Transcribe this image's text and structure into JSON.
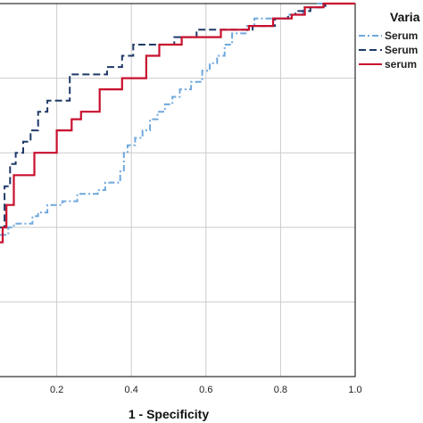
{
  "chart_data": {
    "type": "line",
    "title": "",
    "xlabel": "1 - Specificity",
    "ylabel": "",
    "xlim": [
      0,
      1.0
    ],
    "ylim": [
      0,
      1.0
    ],
    "x_ticks": [
      "0.2",
      "0.4",
      "0.6",
      "0.8",
      "1.0"
    ],
    "x_tick_values": [
      0.2,
      0.4,
      0.6,
      0.8,
      1.0
    ],
    "grid": true,
    "legend_title": "Varia",
    "legend_position": "top-right",
    "series": [
      {
        "name": "Serum",
        "color": "#6fa8dc",
        "dash": "dash-dot",
        "points": [
          [
            0,
            0.32
          ],
          [
            0.005,
            0.32
          ],
          [
            0.005,
            0.33
          ],
          [
            0.02,
            0.33
          ],
          [
            0.02,
            0.35
          ],
          [
            0.035,
            0.35
          ],
          [
            0.035,
            0.38
          ],
          [
            0.07,
            0.38
          ],
          [
            0.07,
            0.4
          ],
          [
            0.085,
            0.4
          ],
          [
            0.085,
            0.41
          ],
          [
            0.135,
            0.41
          ],
          [
            0.135,
            0.43
          ],
          [
            0.15,
            0.43
          ],
          [
            0.15,
            0.44
          ],
          [
            0.175,
            0.44
          ],
          [
            0.175,
            0.46
          ],
          [
            0.215,
            0.46
          ],
          [
            0.215,
            0.47
          ],
          [
            0.255,
            0.47
          ],
          [
            0.255,
            0.49
          ],
          [
            0.31,
            0.49
          ],
          [
            0.31,
            0.5
          ],
          [
            0.33,
            0.5
          ],
          [
            0.33,
            0.52
          ],
          [
            0.37,
            0.52
          ],
          [
            0.37,
            0.55
          ],
          [
            0.38,
            0.55
          ],
          [
            0.38,
            0.6
          ],
          [
            0.39,
            0.6
          ],
          [
            0.39,
            0.62
          ],
          [
            0.41,
            0.62
          ],
          [
            0.41,
            0.64
          ],
          [
            0.43,
            0.64
          ],
          [
            0.43,
            0.66
          ],
          [
            0.45,
            0.66
          ],
          [
            0.45,
            0.69
          ],
          [
            0.47,
            0.69
          ],
          [
            0.47,
            0.71
          ],
          [
            0.49,
            0.71
          ],
          [
            0.49,
            0.73
          ],
          [
            0.51,
            0.73
          ],
          [
            0.51,
            0.75
          ],
          [
            0.53,
            0.75
          ],
          [
            0.53,
            0.77
          ],
          [
            0.56,
            0.77
          ],
          [
            0.56,
            0.79
          ],
          [
            0.59,
            0.79
          ],
          [
            0.59,
            0.82
          ],
          [
            0.61,
            0.82
          ],
          [
            0.61,
            0.84
          ],
          [
            0.63,
            0.84
          ],
          [
            0.63,
            0.86
          ],
          [
            0.65,
            0.86
          ],
          [
            0.65,
            0.89
          ],
          [
            0.67,
            0.89
          ],
          [
            0.67,
            0.92
          ],
          [
            0.71,
            0.92
          ],
          [
            0.71,
            0.94
          ],
          [
            0.73,
            0.94
          ],
          [
            0.73,
            0.96
          ],
          [
            0.82,
            0.96
          ],
          [
            0.82,
            0.97
          ],
          [
            0.86,
            0.97
          ],
          [
            0.86,
            0.99
          ],
          [
            0.9,
            0.99
          ],
          [
            0.9,
            1.0
          ],
          [
            1.0,
            1.0
          ]
        ]
      },
      {
        "name": "Serum",
        "color": "#1f3a68",
        "dash": "dash",
        "points": [
          [
            0,
            0.16
          ],
          [
            0.01,
            0.16
          ],
          [
            0.01,
            0.27
          ],
          [
            0.025,
            0.27
          ],
          [
            0.025,
            0.34
          ],
          [
            0.04,
            0.34
          ],
          [
            0.04,
            0.4
          ],
          [
            0.06,
            0.4
          ],
          [
            0.06,
            0.51
          ],
          [
            0.075,
            0.51
          ],
          [
            0.075,
            0.57
          ],
          [
            0.09,
            0.57
          ],
          [
            0.09,
            0.6
          ],
          [
            0.11,
            0.6
          ],
          [
            0.11,
            0.63
          ],
          [
            0.13,
            0.63
          ],
          [
            0.13,
            0.66
          ],
          [
            0.15,
            0.66
          ],
          [
            0.15,
            0.71
          ],
          [
            0.175,
            0.71
          ],
          [
            0.175,
            0.74
          ],
          [
            0.235,
            0.74
          ],
          [
            0.235,
            0.81
          ],
          [
            0.335,
            0.81
          ],
          [
            0.335,
            0.83
          ],
          [
            0.375,
            0.83
          ],
          [
            0.375,
            0.86
          ],
          [
            0.405,
            0.86
          ],
          [
            0.405,
            0.89
          ],
          [
            0.515,
            0.89
          ],
          [
            0.515,
            0.91
          ],
          [
            0.575,
            0.91
          ],
          [
            0.575,
            0.93
          ],
          [
            0.725,
            0.93
          ],
          [
            0.725,
            0.94
          ],
          [
            0.785,
            0.94
          ],
          [
            0.785,
            0.96
          ],
          [
            0.82,
            0.96
          ],
          [
            0.82,
            0.97
          ],
          [
            0.84,
            0.97
          ],
          [
            0.84,
            0.98
          ],
          [
            0.88,
            0.98
          ],
          [
            0.88,
            0.99
          ],
          [
            0.92,
            0.99
          ],
          [
            0.92,
            1.0
          ],
          [
            1.0,
            1.0
          ]
        ]
      },
      {
        "name": "serum",
        "color": "#c8102e",
        "dash": "solid",
        "points": [
          [
            0,
            0.23
          ],
          [
            0.005,
            0.23
          ],
          [
            0.005,
            0.34
          ],
          [
            0.025,
            0.34
          ],
          [
            0.025,
            0.36
          ],
          [
            0.055,
            0.36
          ],
          [
            0.055,
            0.4
          ],
          [
            0.065,
            0.4
          ],
          [
            0.065,
            0.46
          ],
          [
            0.085,
            0.46
          ],
          [
            0.085,
            0.54
          ],
          [
            0.14,
            0.54
          ],
          [
            0.14,
            0.6
          ],
          [
            0.2,
            0.6
          ],
          [
            0.2,
            0.66
          ],
          [
            0.24,
            0.66
          ],
          [
            0.24,
            0.69
          ],
          [
            0.265,
            0.69
          ],
          [
            0.265,
            0.71
          ],
          [
            0.315,
            0.71
          ],
          [
            0.315,
            0.77
          ],
          [
            0.375,
            0.77
          ],
          [
            0.375,
            0.8
          ],
          [
            0.44,
            0.8
          ],
          [
            0.44,
            0.86
          ],
          [
            0.475,
            0.86
          ],
          [
            0.475,
            0.89
          ],
          [
            0.535,
            0.89
          ],
          [
            0.535,
            0.91
          ],
          [
            0.64,
            0.91
          ],
          [
            0.64,
            0.93
          ],
          [
            0.715,
            0.93
          ],
          [
            0.715,
            0.94
          ],
          [
            0.78,
            0.94
          ],
          [
            0.78,
            0.96
          ],
          [
            0.83,
            0.96
          ],
          [
            0.83,
            0.97
          ],
          [
            0.865,
            0.97
          ],
          [
            0.865,
            0.99
          ],
          [
            0.915,
            0.99
          ],
          [
            0.915,
            1.0
          ],
          [
            1.0,
            1.0
          ]
        ]
      }
    ]
  }
}
